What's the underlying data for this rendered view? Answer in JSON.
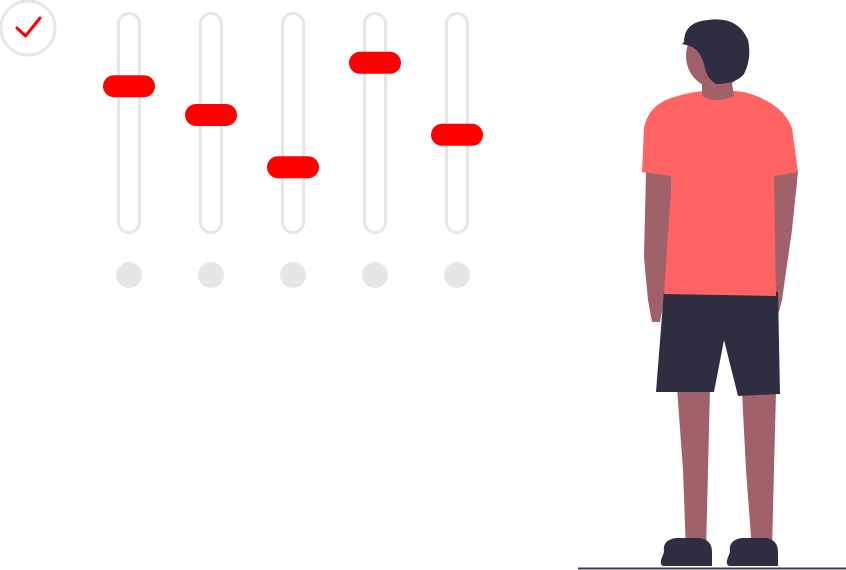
{
  "colors": {
    "accent": "#ff0000",
    "track": "#e6e6e6",
    "shirt": "#ff6363",
    "skin": "#a0616a",
    "hair_and_shorts": "#2f2e41",
    "ground": "#3f3d56",
    "background": "#ffffff"
  },
  "check_badge": {
    "icon": "check-icon",
    "state": "checked"
  },
  "sliders": [
    {
      "id": 1,
      "level": 0.76
    },
    {
      "id": 2,
      "level": 0.6
    },
    {
      "id": 3,
      "level": 0.31
    },
    {
      "id": 4,
      "level": 0.89
    },
    {
      "id": 5,
      "level": 0.49
    }
  ],
  "figure": {
    "description_icon": "person-illustration"
  }
}
